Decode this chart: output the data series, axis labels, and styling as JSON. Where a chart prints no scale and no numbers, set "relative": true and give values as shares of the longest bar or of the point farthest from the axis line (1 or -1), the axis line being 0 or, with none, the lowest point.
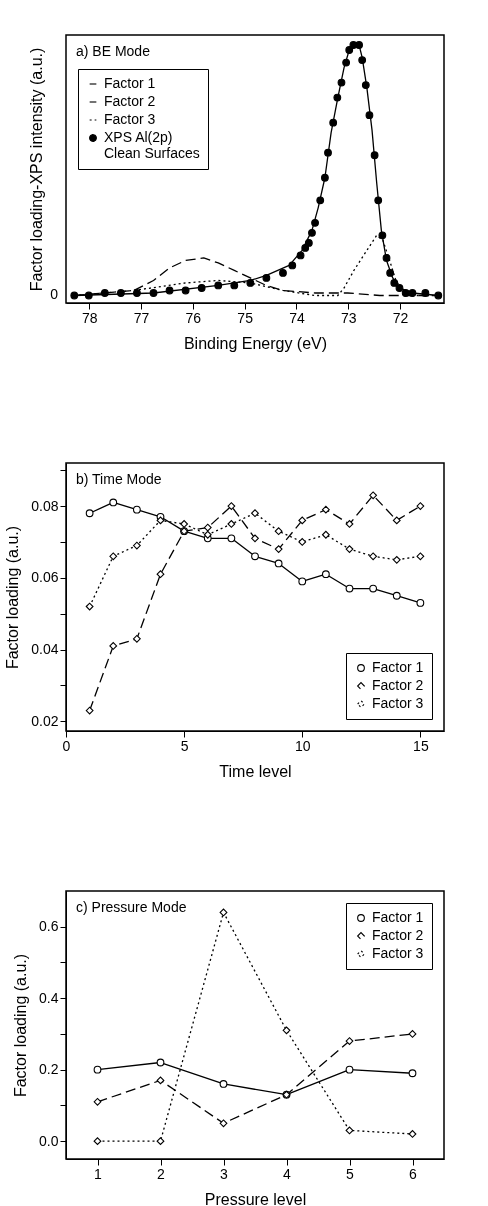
{
  "chart_data": [
    {
      "type": "line",
      "title": "a) BE Mode",
      "xlabel": "Binding Energy (eV)",
      "ylabel": "Factor loading-XPS intensity (a.u.)",
      "relative": true,
      "xlim": [
        78.45,
        71.15
      ],
      "xticks": [
        78,
        77,
        76,
        75,
        74,
        73,
        72
      ],
      "legend": "top left",
      "annotations": [
        "0"
      ],
      "series": [
        {
          "name": "Factor 1",
          "color": "#000000",
          "line_style": "solid",
          "marker": "none",
          "x": [
            78.29,
            76.76,
            75.51,
            74.89,
            74.58,
            74.14,
            73.89,
            73.7,
            73.58,
            73.45,
            73.33,
            73.2,
            73.08,
            72.98,
            72.89,
            72.79,
            72.73,
            72.64,
            72.54,
            72.45,
            72.36,
            72.26,
            72.14,
            72.01,
            71.76,
            71.26
          ],
          "values": [
            0,
            0.01,
            0.04,
            0.06,
            0.08,
            0.12,
            0.18,
            0.26,
            0.35,
            0.47,
            0.65,
            0.79,
            0.91,
            0.98,
            1.0,
            1.0,
            0.95,
            0.83,
            0.66,
            0.45,
            0.26,
            0.14,
            0.07,
            0.03,
            0.01,
            0
          ]
        },
        {
          "name": "Factor 2",
          "color": "#000000",
          "line_style": "dashed",
          "marker": "none",
          "x": [
            78.29,
            77.14,
            76.76,
            76.45,
            76.14,
            75.79,
            75.51,
            75.2,
            74.89,
            74.58,
            74.26,
            73.64,
            73.01,
            72.39,
            71.76,
            71.26
          ],
          "values": [
            0,
            0.02,
            0.06,
            0.11,
            0.14,
            0.15,
            0.13,
            0.1,
            0.07,
            0.04,
            0.02,
            0.01,
            0.01,
            0,
            0,
            0
          ]
        },
        {
          "name": "Factor 3",
          "color": "#000000",
          "line_style": "dotted",
          "marker": "none",
          "x": [
            78.29,
            77.14,
            76.14,
            75.51,
            74.89,
            74.26,
            73.64,
            73.2,
            73.08,
            72.89,
            72.64,
            72.45,
            72.33,
            72.2,
            72.08,
            71.95,
            71.76,
            71.26
          ],
          "values": [
            0,
            0.02,
            0.05,
            0.06,
            0.05,
            0.02,
            0,
            0,
            0.03,
            0.1,
            0.18,
            0.24,
            0.22,
            0.14,
            0.06,
            0.02,
            0,
            0
          ]
        },
        {
          "name": "XPS Al(2p)\nClean Surfaces",
          "type": "scatter",
          "color": "#000000",
          "marker": "circle",
          "x": [
            78.29,
            78.01,
            77.7,
            77.39,
            77.08,
            76.76,
            76.45,
            76.14,
            75.83,
            75.51,
            75.2,
            74.89,
            74.58,
            74.26,
            74.08,
            73.92,
            73.83,
            73.76,
            73.7,
            73.64,
            73.54,
            73.45,
            73.39,
            73.29,
            73.21,
            73.13,
            73.04,
            72.98,
            72.9,
            72.79,
            72.73,
            72.66,
            72.59,
            72.49,
            72.42,
            72.34,
            72.26,
            72.19,
            72.11,
            72.01,
            71.89,
            71.76,
            71.51,
            71.26
          ],
          "values": [
            0,
            0,
            0.01,
            0.01,
            0.01,
            0.01,
            0.02,
            0.02,
            0.03,
            0.04,
            0.04,
            0.05,
            0.07,
            0.09,
            0.12,
            0.16,
            0.19,
            0.21,
            0.25,
            0.29,
            0.38,
            0.47,
            0.57,
            0.69,
            0.79,
            0.85,
            0.93,
            0.98,
            1.0,
            1.0,
            0.94,
            0.84,
            0.72,
            0.56,
            0.38,
            0.24,
            0.15,
            0.09,
            0.05,
            0.03,
            0.01,
            0.01,
            0.01,
            0
          ]
        }
      ]
    },
    {
      "type": "line",
      "title": "b) Time Mode",
      "xlabel": "Time level",
      "ylabel": "Factor loading (a.u.)",
      "xlim": [
        0,
        16
      ],
      "xticks": [
        0,
        5,
        10,
        15
      ],
      "ylim": [
        0.0173,
        0.092
      ],
      "yticks": [
        0.02,
        {
          "value": 0.03,
          "label": null
        },
        0.04,
        {
          "value": 0.05,
          "label": null
        },
        0.06,
        {
          "value": 0.07,
          "label": null
        },
        0.08,
        {
          "value": 0.09,
          "label": null
        }
      ],
      "legend": "bottom right",
      "x": [
        1,
        2,
        3,
        4,
        5,
        6,
        7,
        8,
        9,
        10,
        11,
        12,
        13,
        14,
        15
      ],
      "series": [
        {
          "name": "Factor 1",
          "color": "#000000",
          "line_style": "solid",
          "marker": "circle",
          "values": [
            0.078,
            0.081,
            0.079,
            0.077,
            0.073,
            0.071,
            0.071,
            0.066,
            0.064,
            0.059,
            0.061,
            0.057,
            0.057,
            0.055,
            0.053
          ]
        },
        {
          "name": "Factor 2",
          "color": "#000000",
          "line_style": "dashed",
          "marker": "diamond",
          "values": [
            0.023,
            0.041,
            0.043,
            0.061,
            0.073,
            0.074,
            0.08,
            0.071,
            0.068,
            0.076,
            0.079,
            0.075,
            0.083,
            0.076,
            0.08
          ]
        },
        {
          "name": "Factor 3",
          "color": "#000000",
          "line_style": "dotted",
          "marker": "diamond",
          "values": [
            0.052,
            0.066,
            0.069,
            0.076,
            0.075,
            0.072,
            0.075,
            0.078,
            0.073,
            0.07,
            0.072,
            0.068,
            0.066,
            0.065,
            0.066
          ]
        }
      ]
    },
    {
      "type": "line",
      "title": "c) Pressure Mode",
      "xlabel": "Pressure level",
      "ylabel": "Factor loading (a.u.)",
      "xlim": [
        0.5,
        6.5
      ],
      "xticks": [
        1,
        2,
        3,
        4,
        5,
        6
      ],
      "ylim": [
        -0.05,
        0.7
      ],
      "yticks": [
        "0.0",
        {
          "value": 0.1,
          "label": null
        },
        {
          "value": 0.2,
          "label": "0.2"
        },
        {
          "value": 0.3,
          "label": null
        },
        {
          "value": 0.4,
          "label": "0.4"
        },
        {
          "value": 0.5,
          "label": null
        },
        {
          "value": 0.6,
          "label": "0.6"
        }
      ],
      "legend": "top right",
      "x": [
        1,
        2,
        3,
        4,
        5,
        6
      ],
      "series": [
        {
          "name": "Factor 1",
          "color": "#000000",
          "line_style": "solid",
          "marker": "circle",
          "values": [
            0.2,
            0.22,
            0.16,
            0.13,
            0.2,
            0.19
          ]
        },
        {
          "name": "Factor 2",
          "color": "#000000",
          "line_style": "dashed",
          "marker": "diamond",
          "values": [
            0.11,
            0.17,
            0.05,
            0.13,
            0.28,
            0.3
          ]
        },
        {
          "name": "Factor 3",
          "color": "#000000",
          "line_style": "dotted",
          "marker": "diamond",
          "values": [
            0.0,
            0.0,
            0.64,
            0.31,
            0.03,
            0.02
          ]
        }
      ]
    }
  ]
}
